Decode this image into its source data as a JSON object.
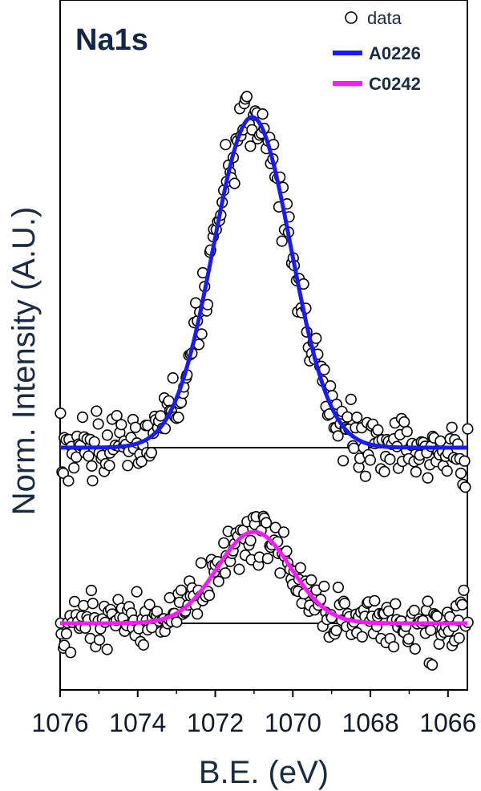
{
  "chart_data": {
    "type": "scatter",
    "panel_label": "Na1s",
    "xlabel": "B.E. (eV)",
    "ylabel": "Norm. Intensity (A.U.)",
    "xlim": [
      1076,
      1065.5
    ],
    "x_reversed": true,
    "xticks": [
      1076,
      1074,
      1072,
      1070,
      1068,
      1066
    ],
    "y_ticks_shown": false,
    "grid": false,
    "legend_position": "top-right",
    "legend": [
      {
        "label": "data",
        "marker": "open-circle"
      },
      {
        "label": "A0226",
        "color": "#1a1aff"
      },
      {
        "label": "C0242",
        "color": "#ff1aff"
      }
    ],
    "series": [
      {
        "name": "A0226",
        "color": "#1a1aff",
        "baseline": 0,
        "fit": {
          "shape": "gaussian",
          "center": 1071.05,
          "amplitude": 1.0,
          "sigma": 1.0
        },
        "data_points": "scattered open circles around fit"
      },
      {
        "name": "C0242",
        "color": "#ff1aff",
        "baseline": 0,
        "fit": {
          "shape": "gaussian",
          "center": 1071.0,
          "amplitude": 0.27,
          "sigma": 0.95
        },
        "data_points": "scattered open circles around fit"
      }
    ]
  }
}
